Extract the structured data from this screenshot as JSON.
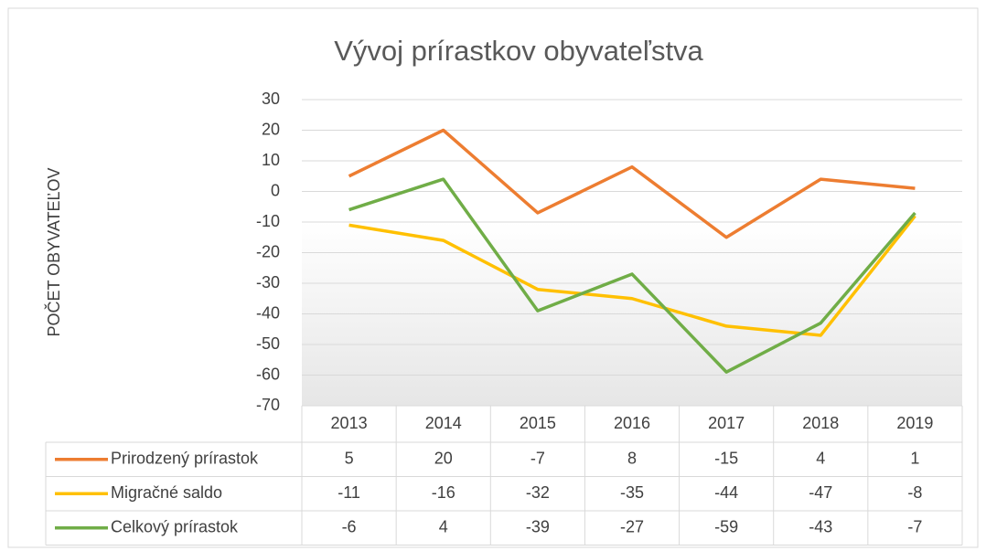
{
  "chart_data": {
    "type": "line",
    "title": "Vývoj prírastkov obyvateľstva",
    "y_label": "POČET OBYVATEĽOV",
    "categories": [
      "2013",
      "2014",
      "2015",
      "2016",
      "2017",
      "2018",
      "2019"
    ],
    "series": [
      {
        "name": "Prirodzený prírastok",
        "color": "#ed7d31",
        "values": [
          5,
          20,
          -7,
          8,
          -15,
          4,
          1
        ]
      },
      {
        "name": "Migračné saldo",
        "color": "#ffc000",
        "values": [
          -11,
          -16,
          -32,
          -35,
          -44,
          -47,
          -8
        ]
      },
      {
        "name": "Celkový prírastok",
        "color": "#70ad47",
        "values": [
          -6,
          4,
          -39,
          -27,
          -59,
          -43,
          -7
        ]
      }
    ],
    "ylim": [
      -70,
      30
    ],
    "yticks": [
      -70,
      -60,
      -50,
      -40,
      -30,
      -20,
      -10,
      0,
      10,
      20,
      30
    ],
    "grid": true,
    "data_table": true
  }
}
